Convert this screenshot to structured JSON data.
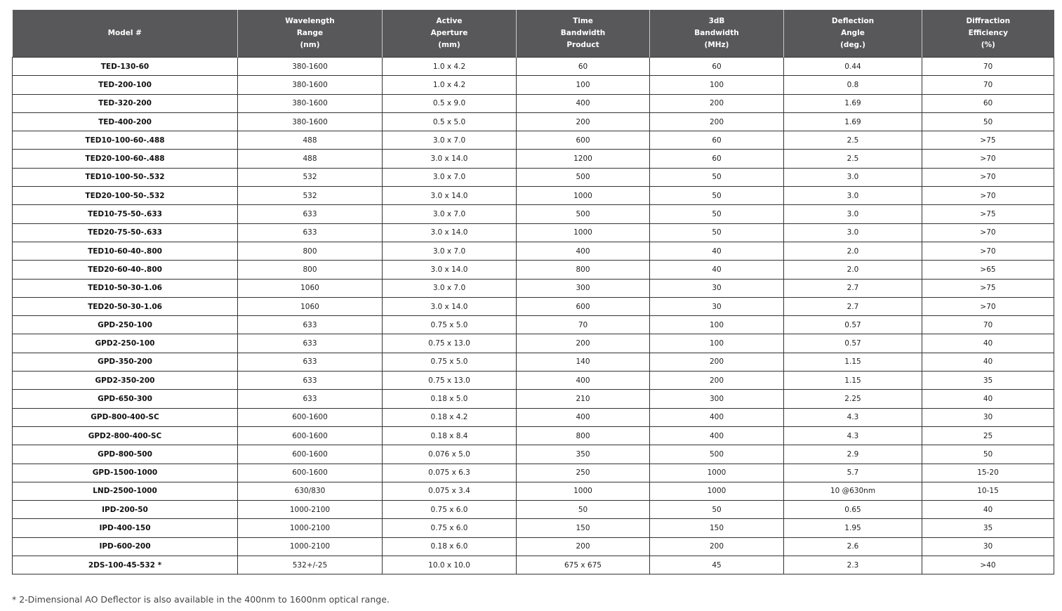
{
  "table": {
    "header": [
      [
        "Model #"
      ],
      [
        "Wavelength",
        "Range",
        "(nm)"
      ],
      [
        "Active",
        "Aperture",
        "(mm)"
      ],
      [
        "Time",
        "Bandwidth",
        "Product"
      ],
      [
        "3dB",
        "Bandwidth",
        "(MHz)"
      ],
      [
        "Deflection",
        "Angle",
        "(deg.)"
      ],
      [
        "Diffraction",
        "Efficiency",
        "(%)"
      ]
    ],
    "rows": [
      [
        "TED-130-60",
        "380-1600",
        "1.0 x 4.2",
        "60",
        "60",
        "0.44",
        "70"
      ],
      [
        "TED-200-100",
        "380-1600",
        "1.0 x 4.2",
        "100",
        "100",
        "0.8",
        "70"
      ],
      [
        "TED-320-200",
        "380-1600",
        "0.5 x 9.0",
        "400",
        "200",
        "1.69",
        "60"
      ],
      [
        "TED-400-200",
        "380-1600",
        "0.5 x 5.0",
        "200",
        "200",
        "1.69",
        "50"
      ],
      [
        "TED10-100-60-.488",
        "488",
        "3.0 x 7.0",
        "600",
        "60",
        "2.5",
        ">75"
      ],
      [
        "TED20-100-60-.488",
        "488",
        "3.0 x 14.0",
        "1200",
        "60",
        "2.5",
        ">70"
      ],
      [
        "TED10-100-50-.532",
        "532",
        "3.0 x 7.0",
        "500",
        "50",
        "3.0",
        ">70"
      ],
      [
        "TED20-100-50-.532",
        "532",
        "3.0 x 14.0",
        "1000",
        "50",
        "3.0",
        ">70"
      ],
      [
        "TED10-75-50-.633",
        "633",
        "3.0 x 7.0",
        "500",
        "50",
        "3.0",
        ">75"
      ],
      [
        "TED20-75-50-.633",
        "633",
        "3.0 x 14.0",
        "1000",
        "50",
        "3.0",
        ">70"
      ],
      [
        "TED10-60-40-.800",
        "800",
        "3.0 x 7.0",
        "400",
        "40",
        "2.0",
        ">70"
      ],
      [
        "TED20-60-40-.800",
        "800",
        "3.0 x 14.0",
        "800",
        "40",
        "2.0",
        ">65"
      ],
      [
        "TED10-50-30-1.06",
        "1060",
        "3.0 x 7.0",
        "300",
        "30",
        "2.7",
        ">75"
      ],
      [
        "TED20-50-30-1.06",
        "1060",
        "3.0 x 14.0",
        "600",
        "30",
        "2.7",
        ">70"
      ],
      [
        "GPD-250-100",
        "633",
        "0.75 x 5.0",
        "70",
        "100",
        "0.57",
        "70"
      ],
      [
        "GPD2-250-100",
        "633",
        "0.75 x 13.0",
        "200",
        "100",
        "0.57",
        "40"
      ],
      [
        "GPD-350-200",
        "633",
        "0.75 x 5.0",
        "140",
        "200",
        "1.15",
        "40"
      ],
      [
        "GPD2-350-200",
        "633",
        "0.75 x 13.0",
        "400",
        "200",
        "1.15",
        "35"
      ],
      [
        "GPD-650-300",
        "633",
        "0.18 x 5.0",
        "210",
        "300",
        "2.25",
        "40"
      ],
      [
        "GPD-800-400-SC",
        "600-1600",
        "0.18 x 4.2",
        "400",
        "400",
        "4.3",
        "30"
      ],
      [
        "GPD2-800-400-SC",
        "600-1600",
        "0.18 x 8.4",
        "800",
        "400",
        "4.3",
        "25"
      ],
      [
        "GPD-800-500",
        "600-1600",
        "0.076 x 5.0",
        "350",
        "500",
        "2.9",
        "50"
      ],
      [
        "GPD-1500-1000",
        "600-1600",
        "0.075 x 6.3",
        "250",
        "1000",
        "5.7",
        "15-20"
      ],
      [
        "LND-2500-1000",
        "630/830",
        "0.075 x 3.4",
        "1000",
        "1000",
        "10 @630nm",
        "10-15"
      ],
      [
        "IPD-200-50",
        "1000-2100",
        "0.75 x 6.0",
        "50",
        "50",
        "0.65",
        "40"
      ],
      [
        "IPD-400-150",
        "1000-2100",
        "0.75 x 6.0",
        "150",
        "150",
        "1.95",
        "35"
      ],
      [
        "IPD-600-200",
        "1000-2100",
        "0.18 x 6.0",
        "200",
        "200",
        "2.6",
        "30"
      ],
      [
        "2DS-100-45-532 *",
        "532+/-25",
        "10.0 x 10.0",
        "675 x 675",
        "45",
        "2.3",
        ">40"
      ]
    ]
  },
  "footnote": "* 2-Dimensional AO Deflector is also available in the 400nm to 1600nm optical range."
}
